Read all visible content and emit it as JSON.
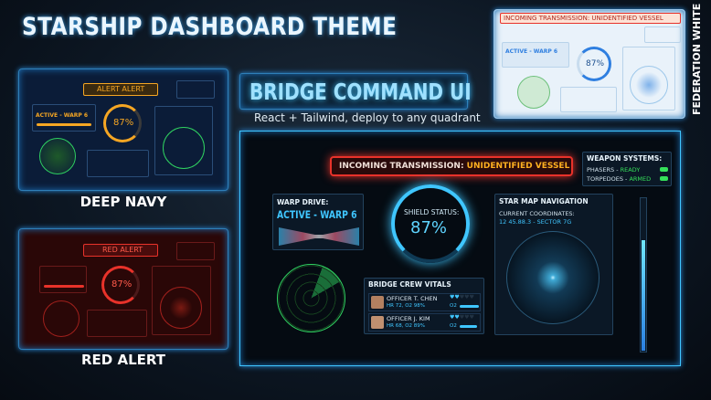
{
  "header": {
    "title": "STARSHIP DASHBOARD THEME"
  },
  "hero": {
    "title": "BRIDGE COMMAND UI",
    "subtitle": "React + Tailwind, deploy to any quadrant"
  },
  "themes": [
    {
      "name": "DEEP NAVY",
      "alert": "ALERT ALERT",
      "warp": "ACTIVE - WARP 6",
      "shield": "87%",
      "accent": "#f5a623"
    },
    {
      "name": "RED ALERT",
      "alert": "RED ALERT",
      "shield": "87%",
      "accent": "#e8322a"
    },
    {
      "name": "FEDERATION WHITE",
      "alert": "INCOMING TRANSMISSION: UNIDENTIFIED VESSEL",
      "warp": "ACTIVE - WARP 6",
      "shield": "87%",
      "accent": "#2f7fe0"
    }
  ],
  "main": {
    "transmission_prefix": "INCOMING TRANSMISSION: ",
    "transmission_highlight": "UNIDENTIFIED VESSEL",
    "weapons": {
      "title": "WEAPON SYSTEMS:",
      "items": [
        {
          "label": "PHASERS - ",
          "status": "READY"
        },
        {
          "label": "TORPEDOES - ",
          "status": "ARMED"
        }
      ]
    },
    "warp": {
      "title": "WARP DRIVE:",
      "value": "ACTIVE - WARP 6"
    },
    "shield": {
      "title": "SHIELD STATUS:",
      "value": "87%",
      "level": 0.87
    },
    "starmap": {
      "title": "STAR MAP NAVIGATION",
      "coords_label": "CURRENT COORDINATES:",
      "coords": "12 45.88.3 - SECTOR 7G"
    },
    "crew": {
      "title": "BRIDGE CREW VITALS",
      "members": [
        {
          "name": "OFFICER T. CHEN",
          "vitals": "HR 72, O2 98%",
          "o2_label": "O2",
          "o2": 0.98
        },
        {
          "name": "OFFICER J. KIM",
          "vitals": "HR 68, O2 89%",
          "o2_label": "O2",
          "o2": 0.89
        }
      ]
    },
    "gauge_level": 0.72
  },
  "colors": {
    "cyan": "#3fc6ff",
    "green": "#35e05a",
    "amber": "#f5a623",
    "red": "#e8322a"
  }
}
